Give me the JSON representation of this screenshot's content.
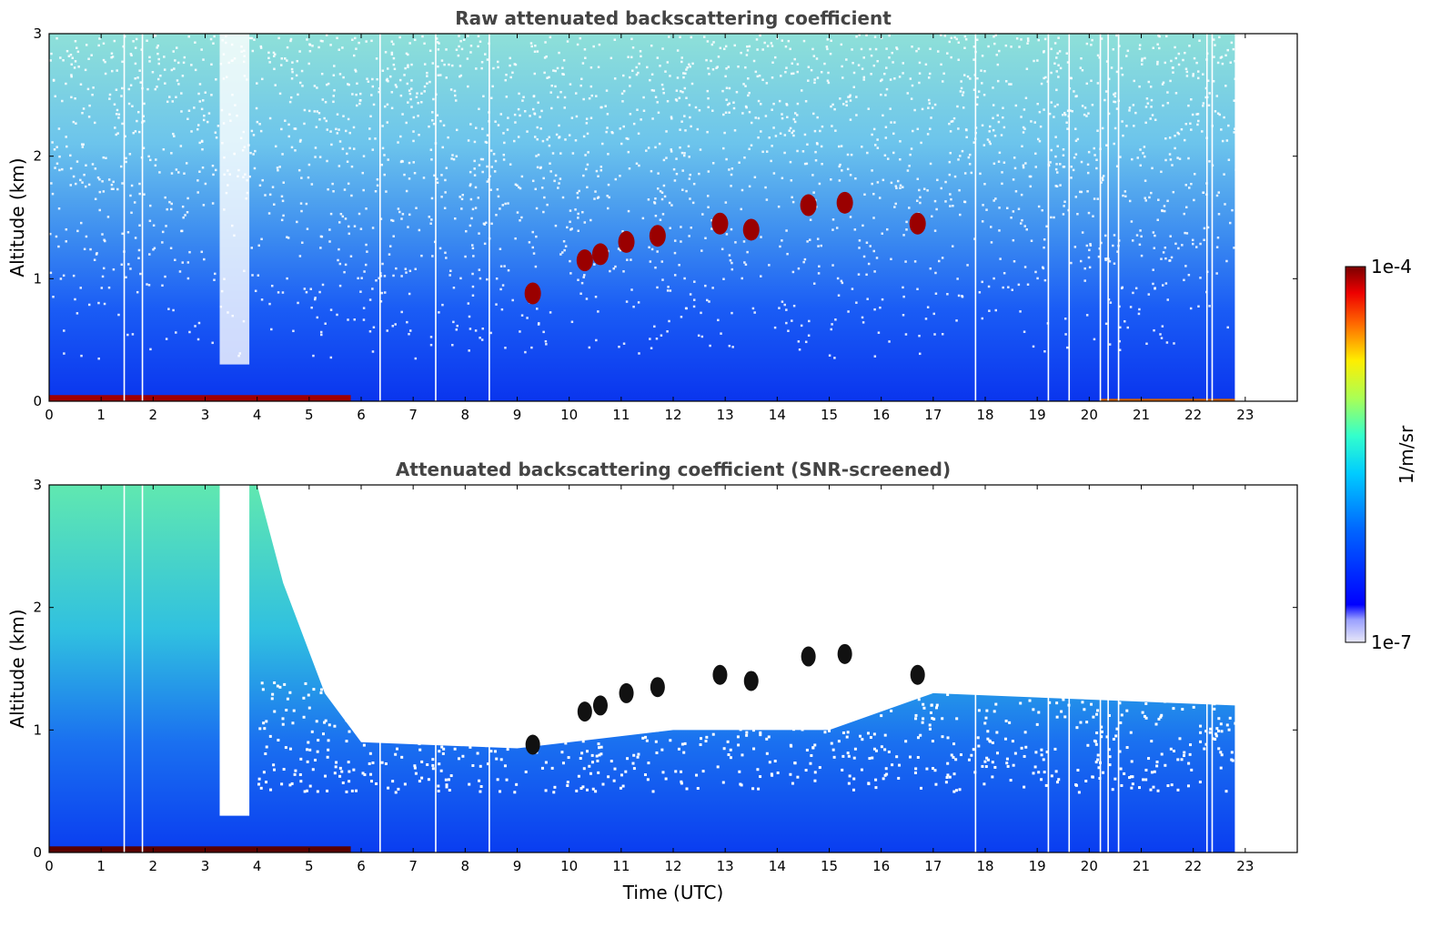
{
  "chart_data": [
    {
      "type": "heatmap",
      "title": "Raw attenuated backscattering coefficient",
      "xlabel": "",
      "ylabel": "Altitude (km)",
      "xlim": [
        0,
        24
      ],
      "ylim": [
        0,
        3
      ],
      "x_ticks": [
        "0",
        "1",
        "2",
        "3",
        "4",
        "5",
        "6",
        "7",
        "8",
        "9",
        "10",
        "11",
        "12",
        "13",
        "14",
        "15",
        "16",
        "17",
        "18",
        "19",
        "20",
        "21",
        "22",
        "23"
      ],
      "y_ticks": [
        "0",
        "1",
        "2",
        "3"
      ],
      "data_end_hour": 22.8,
      "surface_layer_top_km": 0.05,
      "cloud_features": [
        {
          "t": 9.3,
          "alt_km": 0.88
        },
        {
          "t": 10.3,
          "alt_km": 1.15
        },
        {
          "t": 10.6,
          "alt_km": 1.2
        },
        {
          "t": 11.1,
          "alt_km": 1.3
        },
        {
          "t": 11.7,
          "alt_km": 1.35
        },
        {
          "t": 12.9,
          "alt_km": 1.45
        },
        {
          "t": 13.5,
          "alt_km": 1.4
        },
        {
          "t": 14.6,
          "alt_km": 1.6
        },
        {
          "t": 15.3,
          "alt_km": 1.62
        },
        {
          "t": 16.7,
          "alt_km": 1.45
        }
      ]
    },
    {
      "type": "heatmap",
      "title": "Attenuated backscattering coefficient (SNR-screened)",
      "xlabel": "Time (UTC)",
      "ylabel": "Altitude (km)",
      "xlim": [
        0,
        24
      ],
      "ylim": [
        0,
        3
      ],
      "x_ticks": [
        "0",
        "1",
        "2",
        "3",
        "4",
        "5",
        "6",
        "7",
        "8",
        "9",
        "10",
        "11",
        "12",
        "13",
        "14",
        "15",
        "16",
        "17",
        "18",
        "19",
        "20",
        "21",
        "22",
        "23"
      ],
      "y_ticks": [
        "0",
        "1",
        "2",
        "3"
      ],
      "data_end_hour": 22.8,
      "signal_top_km": [
        {
          "t": 0,
          "alt_km": 3.0
        },
        {
          "t": 4.0,
          "alt_km": 3.0
        },
        {
          "t": 4.5,
          "alt_km": 2.2
        },
        {
          "t": 5.3,
          "alt_km": 1.3
        },
        {
          "t": 6.0,
          "alt_km": 0.9
        },
        {
          "t": 9.0,
          "alt_km": 0.85
        },
        {
          "t": 12.0,
          "alt_km": 1.0
        },
        {
          "t": 15.0,
          "alt_km": 1.0
        },
        {
          "t": 17.0,
          "alt_km": 1.3
        },
        {
          "t": 22.8,
          "alt_km": 1.2
        }
      ]
    }
  ],
  "colorbar": {
    "min_label": "1e-7",
    "max_label": "1e-4",
    "label": "1/m/sr",
    "scale": "log",
    "colormap": "jet"
  },
  "colors": {
    "low": "#0b2df0",
    "mid": "#2fd8c8",
    "high": "#d4f000",
    "max": "#7a0000"
  }
}
